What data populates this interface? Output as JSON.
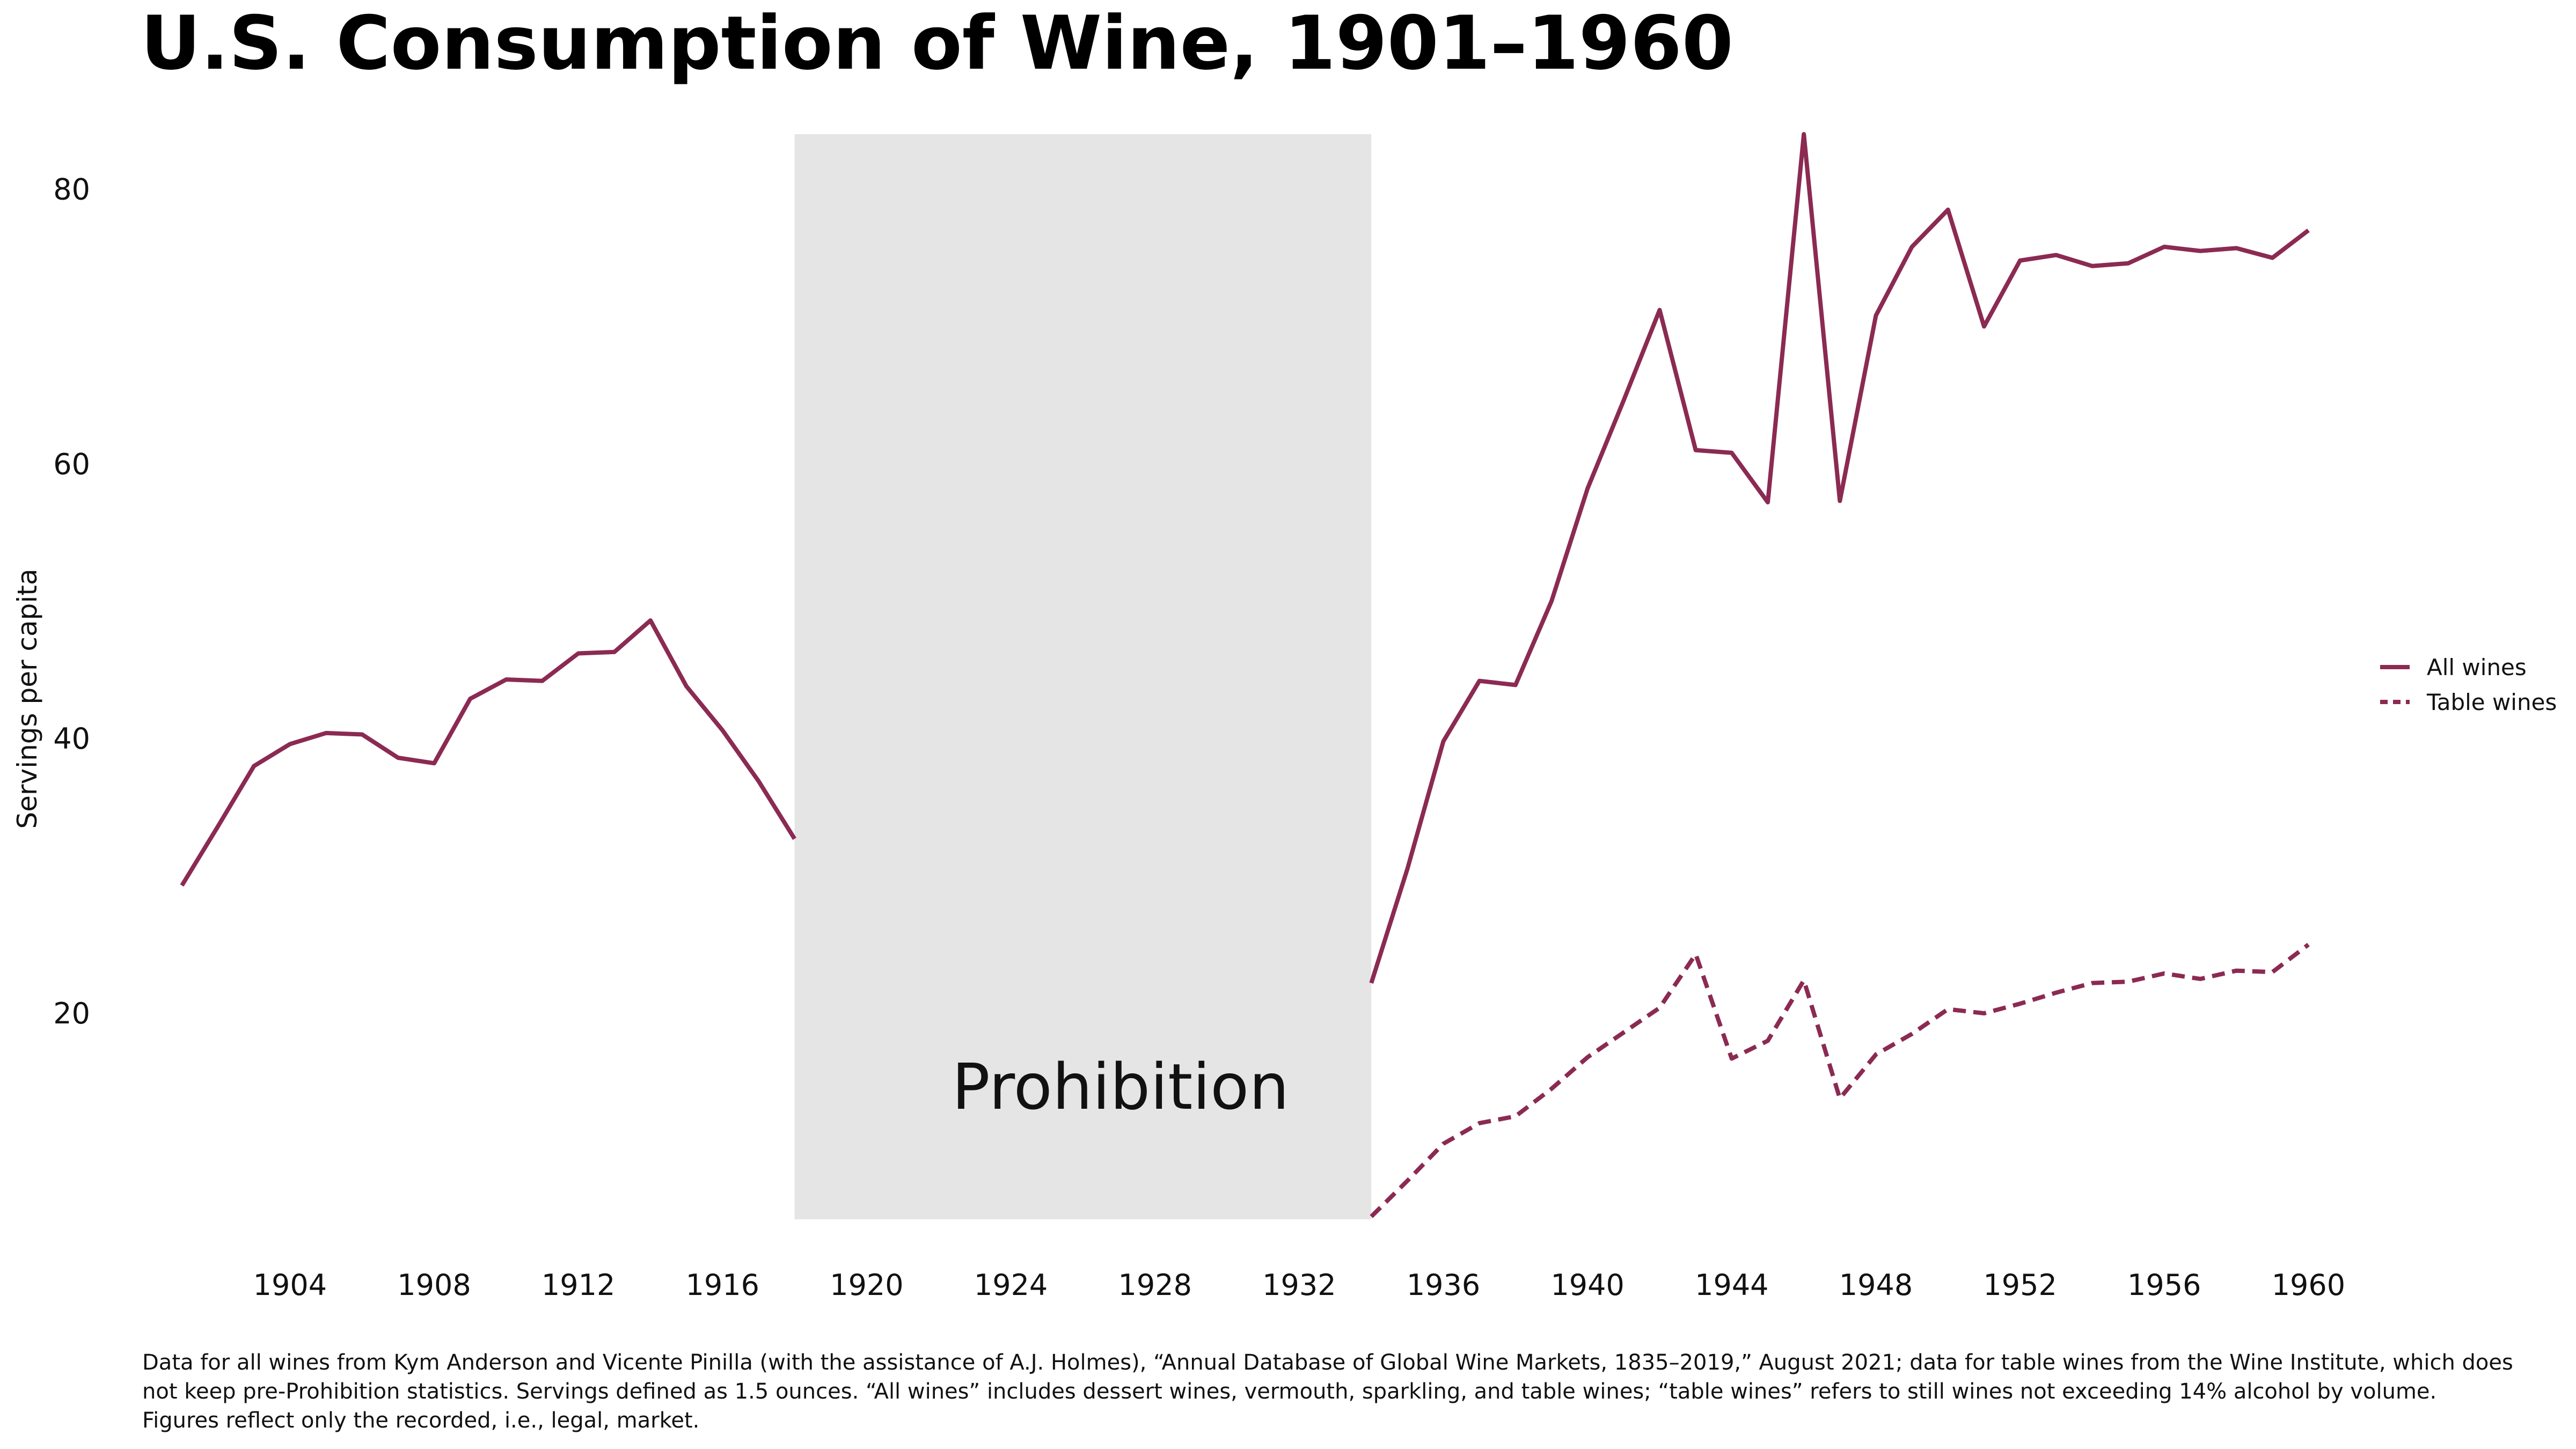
{
  "note": "Data for all wines from Kym Anderson and Vicente Pinilla (with the assistance of A.J. Holmes), “Annual Database of Global Wine Markets, 1835–2019,” August 2021; data for table wines from the Wine Institute, which does not keep pre-Prohibition statistics. Servings defined as 1.5 ounces. “All wines” includes dessert wines, vermouth, sparkling, and table wines; “table wines” refers to still wines not exceeding 14% alcohol by volume. Figures reflect only the recorded, i.e., legal, market.",
  "chart_data": {
    "type": "line",
    "title": "U.S. Consumption of Wine, 1901–1960",
    "ylabel": "Servings per capita",
    "xlabel": "",
    "xlim": [
      1900.6,
      1960.5
    ],
    "ylim": [
      5,
      84
    ],
    "x_ticks": [
      1904,
      1908,
      1912,
      1916,
      1920,
      1924,
      1928,
      1932,
      1936,
      1940,
      1944,
      1948,
      1952,
      1956,
      1960
    ],
    "y_ticks": [
      20,
      40,
      60,
      80
    ],
    "grid": false,
    "legend_position": "right",
    "shaded_region": {
      "label": "Prohibition",
      "x_start": 1918,
      "x_end": 1934,
      "color": "#e5e5e5"
    },
    "series": [
      {
        "name": "All wines",
        "style": "solid",
        "color": "#8b2a52",
        "segments": [
          {
            "x": [
              1901,
              1902,
              1903,
              1904,
              1905,
              1906,
              1907,
              1908,
              1909,
              1910,
              1911,
              1912,
              1913,
              1914,
              1915,
              1916,
              1917,
              1918
            ],
            "y": [
              29.3,
              33.6,
              38.0,
              39.6,
              40.4,
              40.3,
              38.6,
              38.2,
              42.9,
              44.3,
              44.2,
              46.2,
              46.3,
              48.6,
              43.8,
              40.6,
              36.9,
              32.7
            ]
          },
          {
            "x": [
              1934,
              1935,
              1936,
              1937,
              1938,
              1939,
              1940,
              1941,
              1942,
              1943,
              1944,
              1945,
              1946,
              1947,
              1948,
              1949,
              1950,
              1951,
              1952,
              1953,
              1954,
              1955,
              1956,
              1957,
              1958,
              1959,
              1960
            ],
            "y": [
              22.2,
              30.5,
              39.8,
              44.2,
              43.9,
              50.0,
              58.2,
              64.6,
              71.2,
              61.0,
              60.8,
              57.2,
              84.0,
              57.3,
              70.8,
              75.8,
              78.5,
              70.0,
              74.8,
              75.2,
              74.4,
              74.6,
              75.8,
              75.5,
              75.7,
              75.0,
              77.0
            ]
          }
        ]
      },
      {
        "name": "Table wines",
        "style": "dashed",
        "color": "#8b2a52",
        "segments": [
          {
            "x": [
              1934,
              1935,
              1936,
              1937,
              1938,
              1939,
              1940,
              1941,
              1942,
              1943,
              1944,
              1945,
              1946,
              1947,
              1948,
              1949,
              1950,
              1951,
              1952,
              1953,
              1954,
              1955,
              1956,
              1957,
              1958,
              1959,
              1960
            ],
            "y": [
              5.2,
              7.8,
              10.5,
              12.0,
              12.5,
              14.5,
              16.8,
              18.6,
              20.4,
              24.3,
              16.7,
              18.0,
              22.4,
              13.8,
              17.0,
              18.5,
              20.3,
              20.0,
              20.7,
              21.5,
              22.2,
              22.3,
              22.9,
              22.5,
              23.1,
              23.0,
              25.0
            ]
          }
        ]
      }
    ]
  }
}
